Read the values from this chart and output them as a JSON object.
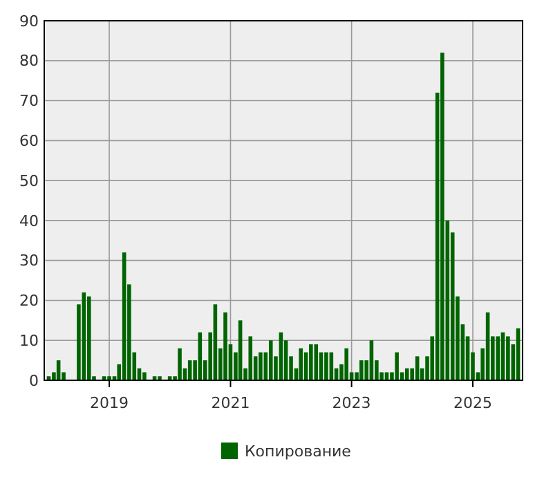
{
  "chart_data": {
    "type": "bar",
    "x": [
      "2018-01",
      "2018-02",
      "2018-03",
      "2018-04",
      "2018-05",
      "2018-06",
      "2018-07",
      "2018-08",
      "2018-09",
      "2018-10",
      "2018-11",
      "2018-12",
      "2019-01",
      "2019-02",
      "2019-03",
      "2019-04",
      "2019-05",
      "2019-06",
      "2019-07",
      "2019-08",
      "2019-09",
      "2019-10",
      "2019-11",
      "2019-12",
      "2020-01",
      "2020-02",
      "2020-03",
      "2020-04",
      "2020-05",
      "2020-06",
      "2020-07",
      "2020-08",
      "2020-09",
      "2020-10",
      "2020-11",
      "2020-12",
      "2021-01",
      "2021-02",
      "2021-03",
      "2021-04",
      "2021-05",
      "2021-06",
      "2021-07",
      "2021-08",
      "2021-09",
      "2021-10",
      "2021-11",
      "2021-12",
      "2022-01",
      "2022-02",
      "2022-03",
      "2022-04",
      "2022-05",
      "2022-06",
      "2022-07",
      "2022-08",
      "2022-09",
      "2022-10",
      "2022-11",
      "2022-12",
      "2023-01",
      "2023-02",
      "2023-03",
      "2023-04",
      "2023-05",
      "2023-06",
      "2023-07",
      "2023-08",
      "2023-09",
      "2023-10",
      "2023-11",
      "2023-12",
      "2024-01",
      "2024-02",
      "2024-03",
      "2024-04",
      "2024-05",
      "2024-06",
      "2024-07",
      "2024-08",
      "2024-09",
      "2024-10",
      "2024-11",
      "2024-12",
      "2025-01",
      "2025-02",
      "2025-03",
      "2025-04",
      "2025-05",
      "2025-06",
      "2025-07",
      "2025-08",
      "2025-09",
      "2025-10"
    ],
    "series": [
      {
        "name": "Копирование",
        "color": "#006400",
        "values": [
          1,
          2,
          5,
          2,
          0,
          0,
          19,
          22,
          21,
          1,
          0,
          1,
          1,
          1,
          4,
          32,
          24,
          7,
          3,
          2,
          0,
          1,
          1,
          0,
          1,
          1,
          8,
          3,
          5,
          5,
          12,
          5,
          12,
          19,
          8,
          17,
          9,
          7,
          15,
          3,
          11,
          6,
          7,
          7,
          10,
          6,
          12,
          10,
          6,
          3,
          8,
          7,
          9,
          9,
          7,
          7,
          7,
          3,
          4,
          8,
          2,
          2,
          5,
          5,
          10,
          5,
          2,
          2,
          2,
          7,
          2,
          3,
          3,
          6,
          3,
          6,
          11,
          72,
          82,
          40,
          37,
          21,
          14,
          11,
          7,
          2,
          8,
          17,
          11,
          11,
          12,
          11,
          9,
          13
        ]
      }
    ],
    "xlim": [
      "2017-12-05",
      "2025-10-28"
    ],
    "xticks": [
      "2019",
      "2021",
      "2023",
      "2025"
    ],
    "ylim": [
      0,
      90
    ],
    "yticks": [
      0,
      10,
      20,
      30,
      40,
      50,
      60,
      70,
      80,
      90
    ],
    "grid": true,
    "legend": "bottom"
  }
}
